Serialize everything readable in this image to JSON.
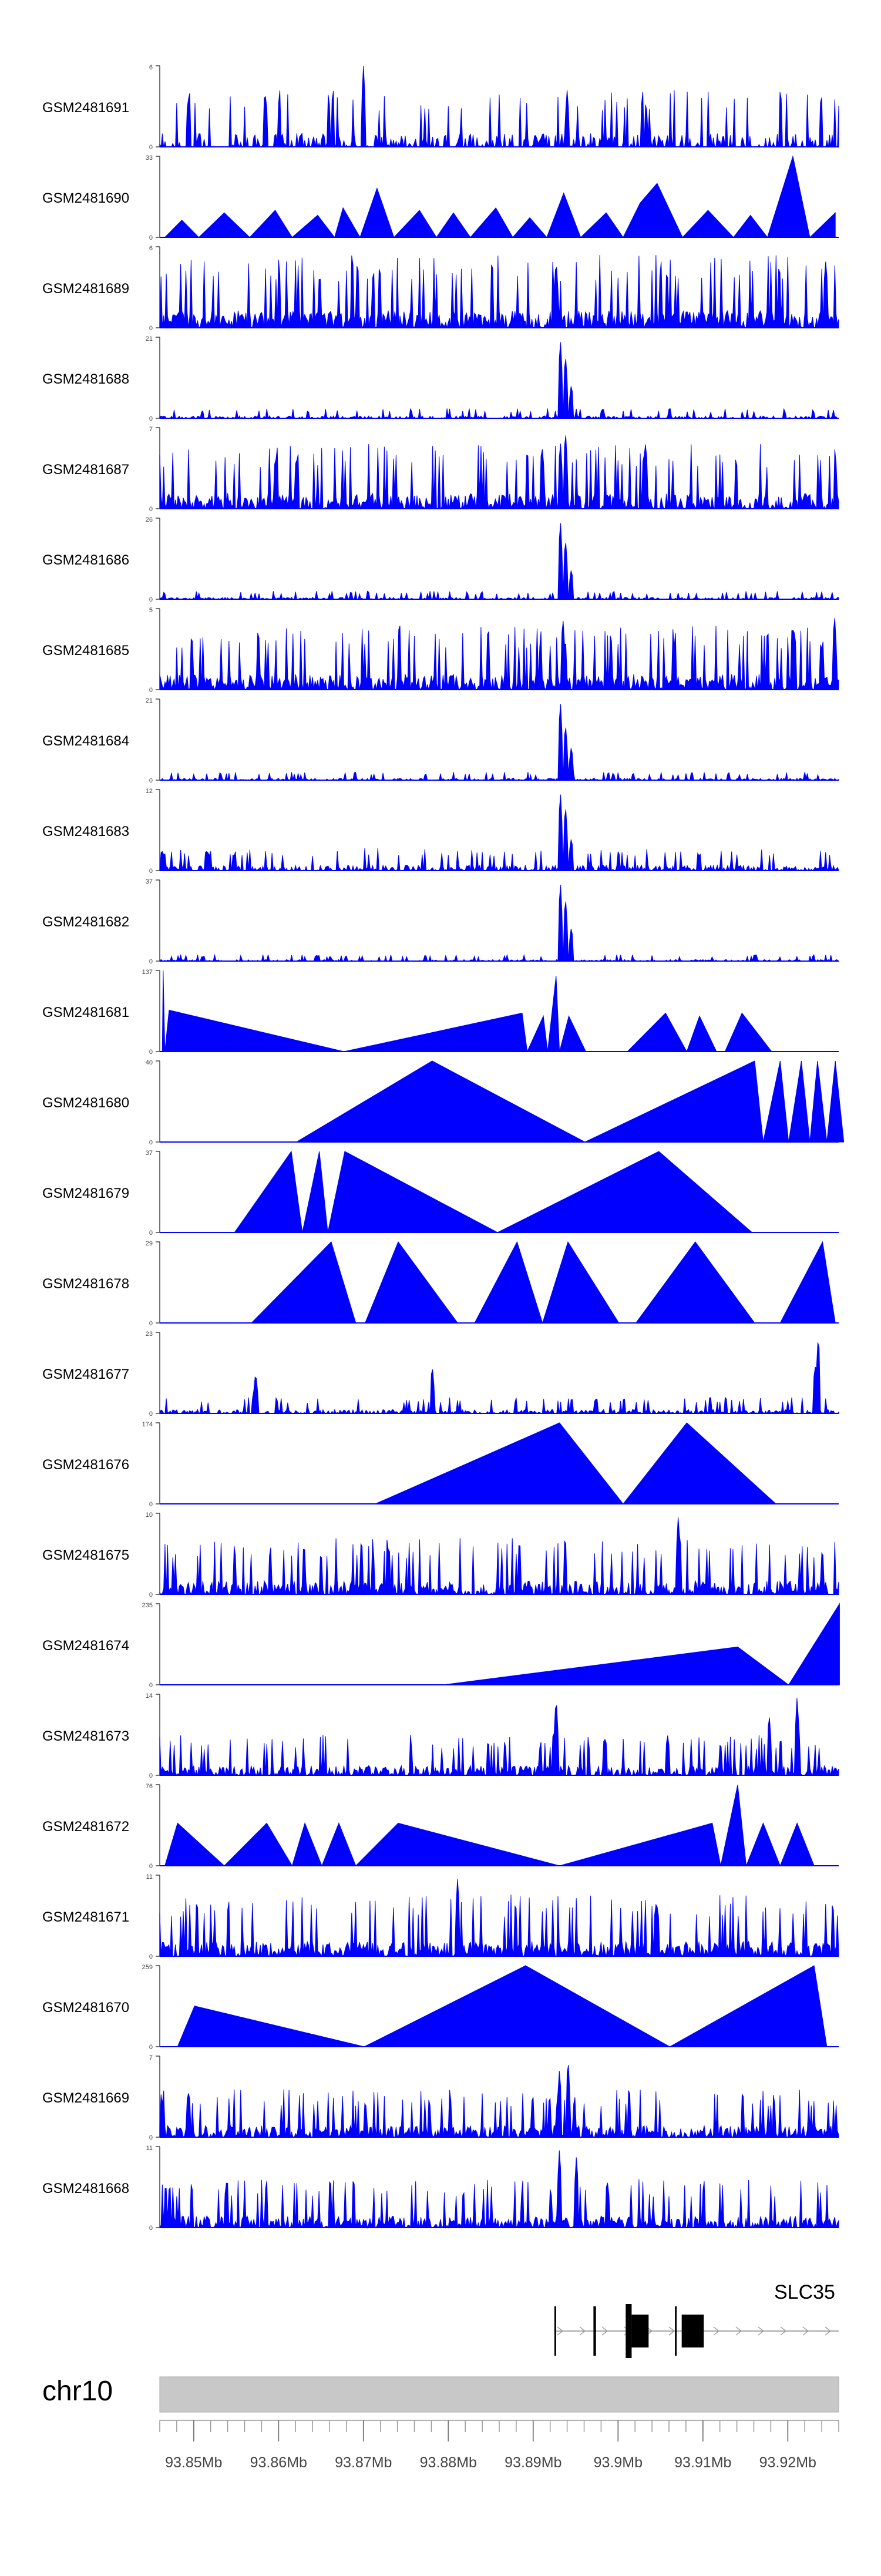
{
  "chart_data": {
    "type": "area",
    "title": "",
    "chromosome": "chr10",
    "xlim": [
      93.846,
      93.926
    ],
    "x_unit": "Mb",
    "x_ticks": [
      {
        "value": 93.85,
        "label": "93.85Mb"
      },
      {
        "value": 93.86,
        "label": "93.86Mb"
      },
      {
        "value": 93.87,
        "label": "93.87Mb"
      },
      {
        "value": 93.88,
        "label": "93.88Mb"
      },
      {
        "value": 93.89,
        "label": "93.89Mb"
      },
      {
        "value": 93.9,
        "label": "93.9Mb"
      },
      {
        "value": 93.91,
        "label": "93.91Mb"
      },
      {
        "value": 93.92,
        "label": "93.92Mb"
      }
    ],
    "gene": {
      "label": "SLC35",
      "start": 93.8925,
      "end": 93.926,
      "strand": "+",
      "exons": [
        [
          93.8925,
          93.8927
        ],
        [
          93.8971,
          93.8974
        ],
        [
          93.9009,
          93.9016
        ],
        [
          93.9016,
          93.9036
        ],
        [
          93.9067,
          93.9069
        ],
        [
          93.9075,
          93.9101
        ]
      ]
    },
    "series": [
      {
        "name": "GSM2481691",
        "ymax": 6,
        "kind": "dense",
        "seed": 11,
        "density": 0.55,
        "scale": 0.35,
        "peaks": [
          [
            93.87,
            6
          ],
          [
            93.894,
            4.2
          ]
        ]
      },
      {
        "name": "GSM2481690",
        "ymax": 33,
        "kind": "triangles",
        "seed": 12,
        "density": 0,
        "scale": 0,
        "peaks": [],
        "tri": [
          [
            93.8466,
            0
          ],
          [
            93.8486,
            7
          ],
          [
            93.8506,
            0
          ],
          [
            93.8536,
            10
          ],
          [
            93.8566,
            0
          ],
          [
            93.8596,
            11
          ],
          [
            93.8616,
            0
          ],
          [
            93.8646,
            9
          ],
          [
            93.8666,
            0
          ],
          [
            93.8676,
            12
          ],
          [
            93.8696,
            0
          ],
          [
            93.8716,
            20
          ],
          [
            93.8736,
            0
          ],
          [
            93.8766,
            11
          ],
          [
            93.8786,
            0
          ],
          [
            93.8806,
            10
          ],
          [
            93.8826,
            0
          ],
          [
            93.8856,
            12
          ],
          [
            93.8876,
            0
          ],
          [
            93.8896,
            8
          ],
          [
            93.8916,
            0
          ],
          [
            93.8936,
            18
          ],
          [
            93.8956,
            0
          ],
          [
            93.8986,
            10
          ],
          [
            93.9006,
            0
          ],
          [
            93.9026,
            14
          ],
          [
            93.9046,
            22
          ],
          [
            93.9076,
            0
          ],
          [
            93.9106,
            11
          ],
          [
            93.9136,
            0
          ],
          [
            93.9156,
            9
          ],
          [
            93.9176,
            0
          ],
          [
            93.9206,
            33
          ],
          [
            93.9226,
            0
          ],
          [
            93.9256,
            10
          ],
          [
            93.9256,
            0
          ]
        ]
      },
      {
        "name": "GSM2481689",
        "ymax": 6,
        "kind": "dense",
        "seed": 13,
        "density": 0.9,
        "scale": 0.45,
        "peaks": [
          [
            93.8927,
            5.2
          ]
        ]
      },
      {
        "name": "GSM2481688",
        "ymax": 21,
        "kind": "peak",
        "seed": 14,
        "density": 0.6,
        "scale": 0.06,
        "peaks": [
          [
            93.8932,
            21
          ],
          [
            93.8938,
            17
          ],
          [
            93.8945,
            9
          ]
        ]
      },
      {
        "name": "GSM2481687",
        "ymax": 7,
        "kind": "dense",
        "seed": 15,
        "density": 0.85,
        "scale": 0.4,
        "peaks": [
          [
            93.8938,
            7
          ],
          [
            93.8932,
            6
          ]
        ]
      },
      {
        "name": "GSM2481686",
        "ymax": 26,
        "kind": "peak",
        "seed": 16,
        "density": 0.6,
        "scale": 0.05,
        "peaks": [
          [
            93.8932,
            26
          ],
          [
            93.8938,
            20
          ],
          [
            93.8945,
            10
          ]
        ]
      },
      {
        "name": "GSM2481685",
        "ymax": 5,
        "kind": "dense",
        "seed": 17,
        "density": 0.85,
        "scale": 0.4,
        "peaks": [
          [
            93.8935,
            4.6
          ],
          [
            93.9255,
            4.8
          ]
        ]
      },
      {
        "name": "GSM2481684",
        "ymax": 21,
        "kind": "peak",
        "seed": 18,
        "density": 0.6,
        "scale": 0.05,
        "peaks": [
          [
            93.8932,
            21
          ],
          [
            93.8938,
            15
          ],
          [
            93.8945,
            9
          ]
        ]
      },
      {
        "name": "GSM2481683",
        "ymax": 12,
        "kind": "peak",
        "seed": 19,
        "density": 0.7,
        "scale": 0.14,
        "peaks": [
          [
            93.8932,
            12
          ],
          [
            93.8938,
            10
          ],
          [
            93.8945,
            5
          ]
        ]
      },
      {
        "name": "GSM2481682",
        "ymax": 37,
        "kind": "peak",
        "seed": 20,
        "density": 0.6,
        "scale": 0.04,
        "peaks": [
          [
            93.8932,
            37
          ],
          [
            93.8938,
            30
          ],
          [
            93.8945,
            16
          ]
        ]
      },
      {
        "name": "GSM2481681",
        "ymax": 137,
        "kind": "triangles",
        "seed": 21,
        "density": 0,
        "scale": 0,
        "peaks": [],
        "tri": [
          [
            93.8463,
            0
          ],
          [
            93.8464,
            137
          ],
          [
            93.8466,
            0
          ],
          [
            93.8471,
            70
          ],
          [
            93.8677,
            0
          ],
          [
            93.8887,
            65
          ],
          [
            93.8893,
            0
          ],
          [
            93.8912,
            60
          ],
          [
            93.8917,
            0
          ],
          [
            93.8927,
            128
          ],
          [
            93.8931,
            0
          ],
          [
            93.8942,
            60
          ],
          [
            93.8962,
            0
          ],
          [
            93.8966,
            0
          ],
          [
            93.9011,
            0
          ],
          [
            93.9056,
            65
          ],
          [
            93.9081,
            0
          ],
          [
            93.9096,
            60
          ],
          [
            93.9116,
            0
          ],
          [
            93.9126,
            0
          ],
          [
            93.9146,
            65
          ],
          [
            93.9181,
            0
          ]
        ]
      },
      {
        "name": "GSM2481680",
        "ymax": 40,
        "kind": "triangles",
        "seed": 22,
        "density": 0,
        "scale": 0,
        "peaks": [],
        "tri": [
          [
            93.8621,
            0
          ],
          [
            93.8781,
            40
          ],
          [
            93.8961,
            0
          ],
          [
            93.9161,
            40
          ],
          [
            93.9171,
            0
          ],
          [
            93.9191,
            40
          ],
          [
            93.9201,
            0
          ],
          [
            93.9216,
            40
          ],
          [
            93.9226,
            0
          ],
          [
            93.9235,
            40
          ],
          [
            93.9246,
            0
          ],
          [
            93.9256,
            40
          ],
          [
            93.9266,
            0
          ]
        ]
      },
      {
        "name": "GSM2481679",
        "ymax": 37,
        "kind": "triangles",
        "seed": 23,
        "density": 0,
        "scale": 0,
        "peaks": [],
        "tri": [
          [
            93.8548,
            0
          ],
          [
            93.8615,
            37
          ],
          [
            93.8628,
            0
          ],
          [
            93.8648,
            37
          ],
          [
            93.8658,
            0
          ],
          [
            93.8678,
            37
          ],
          [
            93.8858,
            0
          ],
          [
            93.9048,
            37
          ],
          [
            93.9158,
            0
          ]
        ]
      },
      {
        "name": "GSM2481678",
        "ymax": 29,
        "kind": "triangles",
        "seed": 24,
        "density": 0,
        "scale": 0,
        "peaks": [],
        "tri": [
          [
            93.8568,
            0
          ],
          [
            93.8662,
            29
          ],
          [
            93.8691,
            0
          ],
          [
            93.8702,
            0
          ],
          [
            93.8741,
            29
          ],
          [
            93.8811,
            0
          ],
          [
            93.8831,
            0
          ],
          [
            93.8881,
            29
          ],
          [
            93.8911,
            0
          ],
          [
            93.8941,
            29
          ],
          [
            93.9001,
            0
          ],
          [
            93.9021,
            0
          ],
          [
            93.9091,
            29
          ],
          [
            93.9161,
            0
          ],
          [
            93.9191,
            0
          ],
          [
            93.9241,
            29
          ],
          [
            93.9256,
            0
          ]
        ]
      },
      {
        "name": "GSM2481677",
        "ymax": 23,
        "kind": "peak",
        "seed": 25,
        "density": 0.7,
        "scale": 0.1,
        "peaks": [
          [
            93.8573,
            12
          ],
          [
            93.8781,
            14
          ],
          [
            93.9236,
            23
          ],
          [
            93.9232,
            14
          ]
        ]
      },
      {
        "name": "GSM2481676",
        "ymax": 174,
        "kind": "triangles",
        "seed": 26,
        "density": 0,
        "scale": 0,
        "peaks": [],
        "tri": [
          [
            93.8714,
            0
          ],
          [
            93.8931,
            174
          ],
          [
            93.9006,
            0
          ],
          [
            93.9081,
            174
          ],
          [
            93.9186,
            0
          ]
        ]
      },
      {
        "name": "GSM2481675",
        "ymax": 10,
        "kind": "dense",
        "seed": 27,
        "density": 0.8,
        "scale": 0.35,
        "peaks": [
          [
            93.9071,
            10
          ]
        ]
      },
      {
        "name": "GSM2481674",
        "ymax": 235,
        "kind": "triangles",
        "seed": 28,
        "density": 0,
        "scale": 0,
        "peaks": [],
        "tri": [
          [
            93.8794,
            0
          ],
          [
            93.9141,
            110
          ],
          [
            93.9201,
            0
          ],
          [
            93.9261,
            235
          ],
          [
            93.9261,
            0
          ]
        ]
      },
      {
        "name": "GSM2481673",
        "ymax": 14,
        "kind": "dense",
        "seed": 29,
        "density": 0.8,
        "scale": 0.25,
        "peaks": [
          [
            93.8927,
            14
          ],
          [
            93.9211,
            14
          ],
          [
            93.9178,
            11
          ]
        ]
      },
      {
        "name": "GSM2481672",
        "ymax": 76,
        "kind": "triangles",
        "seed": 30,
        "density": 0,
        "scale": 0,
        "peaks": [],
        "tri": [
          [
            93.8466,
            0
          ],
          [
            93.8481,
            40
          ],
          [
            93.8536,
            0
          ],
          [
            93.8586,
            40
          ],
          [
            93.8616,
            0
          ],
          [
            93.8631,
            40
          ],
          [
            93.8651,
            0
          ],
          [
            93.8671,
            40
          ],
          [
            93.8691,
            0
          ],
          [
            93.8741,
            40
          ],
          [
            93.8931,
            0
          ],
          [
            93.9111,
            40
          ],
          [
            93.9121,
            0
          ],
          [
            93.9141,
            76
          ],
          [
            93.9151,
            0
          ],
          [
            93.9171,
            40
          ],
          [
            93.9191,
            0
          ],
          [
            93.9211,
            40
          ],
          [
            93.9231,
            0
          ]
        ]
      },
      {
        "name": "GSM2481671",
        "ymax": 11,
        "kind": "dense",
        "seed": 31,
        "density": 0.9,
        "scale": 0.38,
        "peaks": [
          [
            93.8811,
            11
          ]
        ]
      },
      {
        "name": "GSM2481670",
        "ymax": 259,
        "kind": "triangles",
        "seed": 32,
        "density": 0,
        "scale": 0,
        "peaks": [],
        "tri": [
          [
            93.8481,
            0
          ],
          [
            93.8501,
            130
          ],
          [
            93.8701,
            0
          ],
          [
            93.8891,
            259
          ],
          [
            93.9061,
            0
          ],
          [
            93.9231,
            259
          ],
          [
            93.9246,
            0
          ]
        ]
      },
      {
        "name": "GSM2481669",
        "ymax": 7,
        "kind": "dense",
        "seed": 33,
        "density": 0.85,
        "scale": 0.3,
        "peaks": [
          [
            93.8941,
            7
          ],
          [
            93.8931,
            6
          ]
        ]
      },
      {
        "name": "GSM2481668",
        "ymax": 11,
        "kind": "dense",
        "seed": 34,
        "density": 0.85,
        "scale": 0.3,
        "peaks": [
          [
            93.8931,
            11
          ],
          [
            93.8951,
            10
          ]
        ]
      }
    ]
  }
}
